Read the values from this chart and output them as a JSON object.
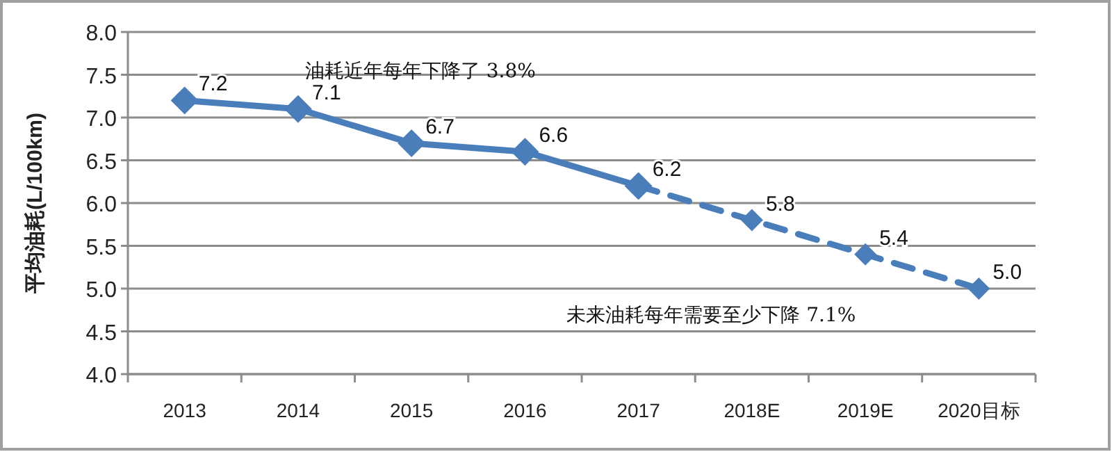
{
  "chart_data": {
    "type": "line",
    "ylabel": "平均油耗(L/100km)",
    "categories": [
      "2013",
      "2014",
      "2015",
      "2016",
      "2017",
      "2018E",
      "2019E",
      "2020目标"
    ],
    "series": [
      {
        "color": "#4a7ebb",
        "line_style": "solid",
        "values": [
          7.2,
          7.1,
          6.7,
          6.6,
          6.2,
          null,
          null,
          null
        ],
        "value_labels": [
          "7.2",
          "7.1",
          "6.7",
          "6.6",
          "6.2",
          null,
          null,
          null
        ]
      },
      {
        "color": "#4a7ebb",
        "line_style": "dashed",
        "values": [
          null,
          null,
          null,
          null,
          6.2,
          5.8,
          5.4,
          5.0
        ],
        "value_labels": [
          null,
          null,
          null,
          null,
          null,
          "5.8",
          "5.4",
          "5.0"
        ]
      }
    ],
    "ylim": [
      4.0,
      8.0
    ],
    "yticks": [
      {
        "value": 4.0,
        "label": "4.0"
      },
      {
        "value": 4.5,
        "label": "4.5"
      },
      {
        "value": 5.0,
        "label": "5.0"
      },
      {
        "value": 5.5,
        "label": "5.5"
      },
      {
        "value": 6.0,
        "label": "6.0"
      },
      {
        "value": 6.5,
        "label": "6.5"
      },
      {
        "value": 7.0,
        "label": "7.0"
      },
      {
        "value": 7.5,
        "label": "7.5"
      },
      {
        "value": 8.0,
        "label": "8.0"
      }
    ],
    "grid": "y",
    "marker": "diamond",
    "annotations": [
      "油耗近年每年下降了 3.8%",
      "未来油耗每年需要至少下降 7.1%"
    ]
  }
}
